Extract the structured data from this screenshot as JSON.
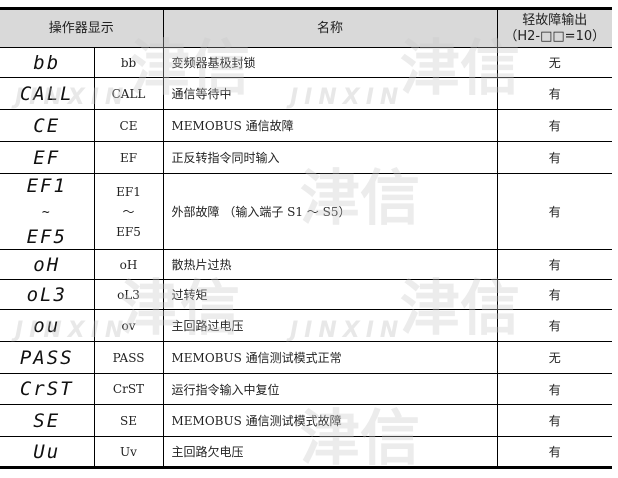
{
  "header": {
    "col_display": "操作器显示",
    "col_name": "名称",
    "col_output_line1": "轻故障输出",
    "col_output_line2": "（H2-□□=10）"
  },
  "rows": [
    {
      "seg": "bb",
      "code": "bb",
      "name": "变频器基极封锁",
      "output": "无"
    },
    {
      "seg": "CALL",
      "code": "CALL",
      "name": "通信等待中",
      "output": "有"
    },
    {
      "seg": "CE",
      "code": "CE",
      "name": "MEMOBUS 通信故障",
      "output": "有"
    },
    {
      "seg": "EF",
      "code": "EF",
      "name": "正反转指令同时输入",
      "output": "有"
    },
    {
      "seg": "EF1",
      "seg_tilde": "~",
      "seg2": "EF5",
      "code": "EF1",
      "code_tilde": "～",
      "code2": "EF5",
      "name": "外部故障 （输入端子 S1 ～ S5）",
      "output": "有"
    },
    {
      "seg": "oH",
      "code": "oH",
      "name": "散热片过热",
      "output": "有"
    },
    {
      "seg": "oL3",
      "code": "oL3",
      "name": "过转矩",
      "output": "有"
    },
    {
      "seg": "ou",
      "code": "ov",
      "name": "主回路过电压",
      "output": "有"
    },
    {
      "seg": "PASS",
      "code": "PASS",
      "name": "MEMOBUS 通信测试模式正常",
      "output": "无"
    },
    {
      "seg": "CrST",
      "code": "CrST",
      "name": "运行指令输入中复位",
      "output": "有"
    },
    {
      "seg": "SE",
      "code": "SE",
      "name": "MEMOBUS 通信测试模式故障",
      "output": "有"
    },
    {
      "seg": "Uu",
      "code": "Uv",
      "name": "主回路欠电压",
      "output": "有"
    }
  ],
  "watermark": {
    "text": "津信",
    "latin": "JINXIN"
  }
}
